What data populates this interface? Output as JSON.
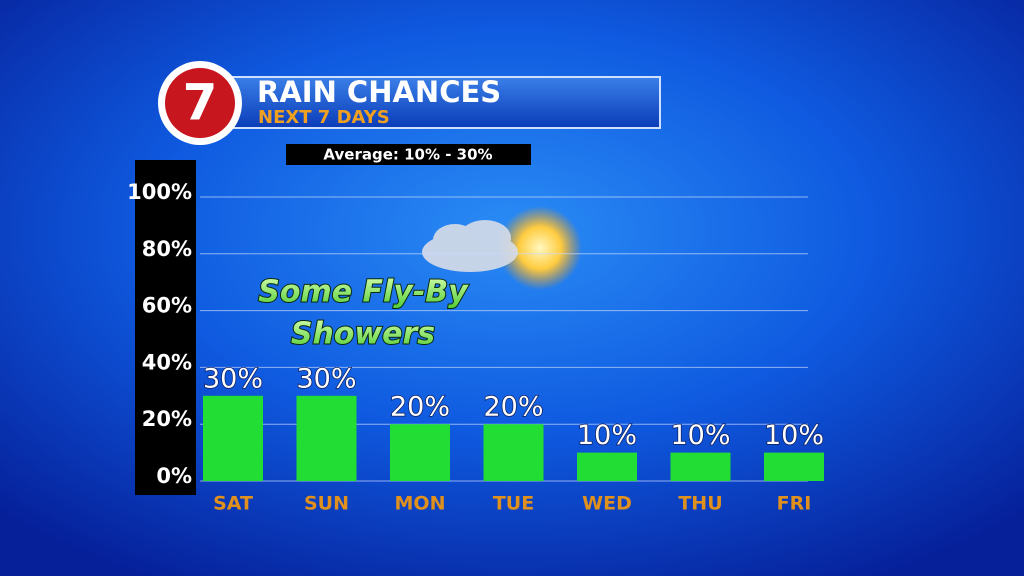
{
  "logo": "7",
  "chart_data": {
    "type": "bar",
    "title": "RAIN CHANCES",
    "subtitle": "NEXT 7 DAYS",
    "annotations": [
      "Average: 10% - 30%",
      "Some Fly-By",
      "Showers"
    ],
    "categories": [
      "SAT",
      "SUN",
      "MON",
      "TUE",
      "WED",
      "THU",
      "FRI"
    ],
    "values": [
      30,
      30,
      20,
      20,
      10,
      10,
      10
    ],
    "value_labels": [
      "30%",
      "30%",
      "20%",
      "20%",
      "10%",
      "10%",
      "10%"
    ],
    "color": "#22dd33",
    "ylim": [
      0,
      100
    ],
    "yticks": [
      {
        "value": 0,
        "label": "0%"
      },
      {
        "value": 20,
        "label": "20%"
      },
      {
        "value": 40,
        "label": "40%"
      },
      {
        "value": 60,
        "label": "60%"
      },
      {
        "value": 80,
        "label": "80%"
      },
      {
        "value": 100,
        "label": "100%"
      }
    ],
    "grid": true
  }
}
